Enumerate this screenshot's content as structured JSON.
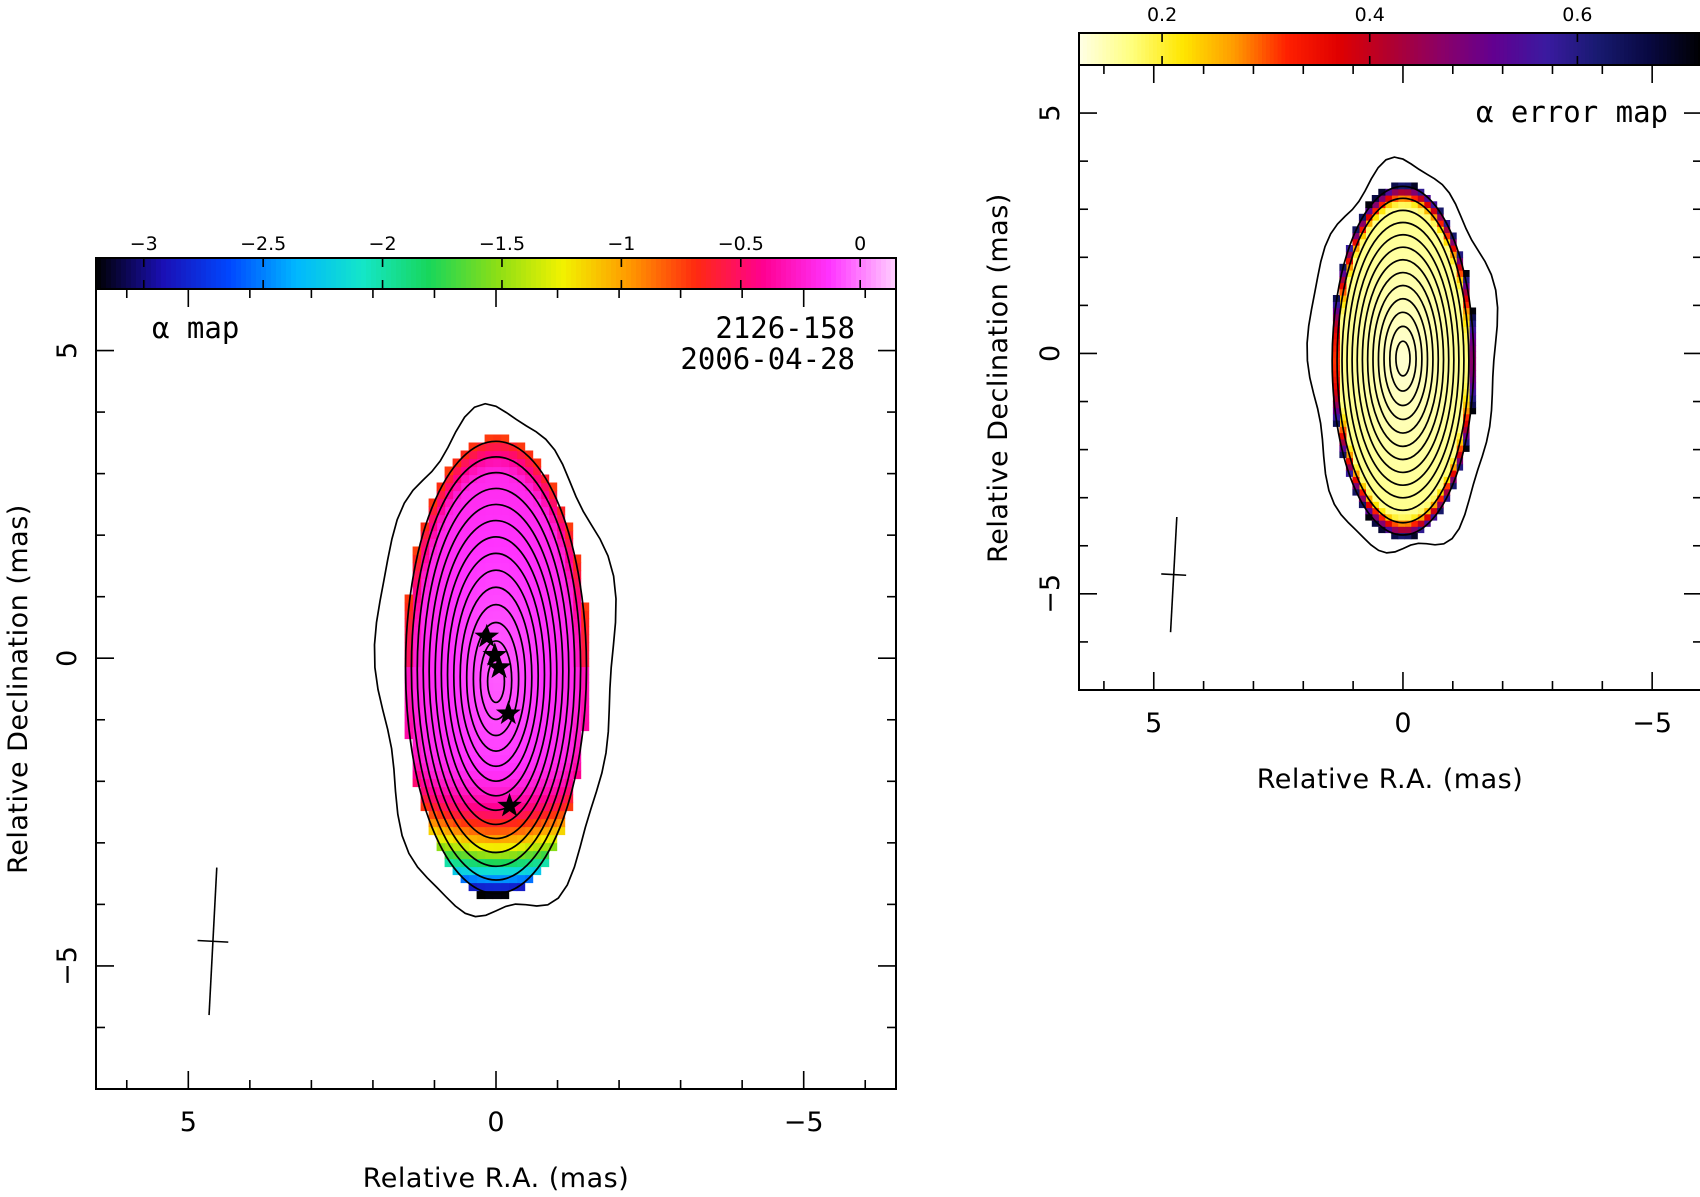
{
  "chart_data": [
    {
      "type": "heatmap",
      "title": "α map",
      "source": "2126-158",
      "epoch": "2006-04-28",
      "xlabel": "Relative R.A. (mas)",
      "ylabel": "Relative Declination (mas)",
      "xlim": [
        6.5,
        -6.5
      ],
      "ylim": [
        -7,
        6
      ],
      "xticks": [
        5,
        0,
        -5
      ],
      "yticks": [
        -5,
        0,
        5
      ],
      "x_tick_labels": [
        "5",
        "0",
        "−5"
      ],
      "y_tick_labels": [
        "−5",
        "0",
        "5"
      ],
      "colorbar": {
        "range": [
          -3.2,
          0.15
        ],
        "ticks": [
          -3,
          -2.5,
          -2,
          -1.5,
          -1,
          -0.5,
          0
        ],
        "tick_labels": [
          "−3",
          "−2.5",
          "−2",
          "−1.5",
          "−1",
          "−0.5",
          "0"
        ],
        "colormap": [
          "#000000",
          "#1a0fb4",
          "#0047ff",
          "#00b7ff",
          "#14e6c8",
          "#18d65a",
          "#8ade16",
          "#f2f200",
          "#ff9900",
          "#ff2a10",
          "#ff0090",
          "#ff33ff",
          "#ffd0ff"
        ]
      },
      "emission": {
        "center": [
          0.0,
          -0.15
        ],
        "ra_halfwidth": 1.5,
        "dec_halfwidth": 3.75,
        "contour_levels": 14
      },
      "star_components": [
        {
          "ra": 0.15,
          "dec": 0.35
        },
        {
          "ra": 0.02,
          "dec": 0.05
        },
        {
          "ra": -0.05,
          "dec": -0.15
        },
        {
          "ra": -0.2,
          "dec": -0.9
        },
        {
          "ra": -0.22,
          "dec": -2.4
        }
      ],
      "beam": {
        "ra": 4.6,
        "dec": -4.6,
        "major": 2.4,
        "minor": 0.5,
        "pa_deg": -3
      }
    },
    {
      "type": "heatmap",
      "title": "α error map",
      "xlabel": "Relative R.A. (mas)",
      "ylabel": "Relative Declination (mas)",
      "xlim": [
        6.5,
        -6
      ],
      "ylim": [
        -7,
        6
      ],
      "xticks": [
        5,
        0,
        -5
      ],
      "yticks": [
        -5,
        0,
        5
      ],
      "x_tick_labels": [
        "5",
        "0",
        "−5"
      ],
      "y_tick_labels": [
        "−5",
        "0",
        "5"
      ],
      "colorbar": {
        "range": [
          0.12,
          0.72
        ],
        "ticks": [
          0.2,
          0.4,
          0.6
        ],
        "tick_labels": [
          "0.2",
          "0.4",
          "0.6"
        ],
        "colormap": [
          "#ffffe6",
          "#ffff80",
          "#ffe600",
          "#ff9a00",
          "#ff2000",
          "#e00000",
          "#b00030",
          "#8a0068",
          "#620090",
          "#3a1aa0",
          "#181a70",
          "#080840",
          "#000000"
        ]
      },
      "emission": {
        "center": [
          0.0,
          -0.15
        ],
        "ra_halfwidth": 1.45,
        "dec_halfwidth": 3.7,
        "contour_levels": 13
      },
      "beam": {
        "ra": 4.6,
        "dec": -4.6,
        "major": 2.4,
        "minor": 0.5,
        "pa_deg": -3
      }
    }
  ]
}
